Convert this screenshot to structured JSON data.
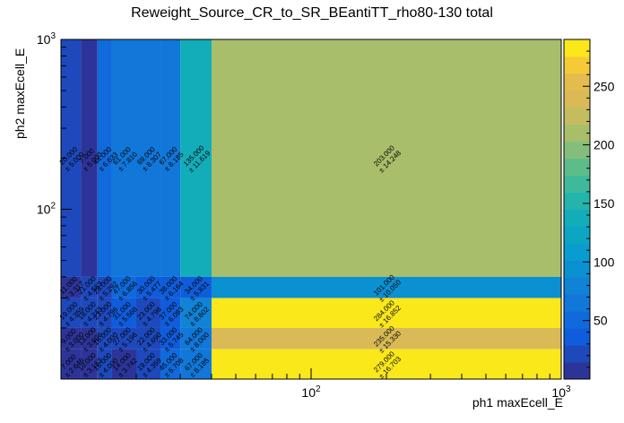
{
  "chart_data": {
    "type": "heatmap",
    "title": "Reweight_Source_CR_to_SR_BEantiTT_rho80-130 total",
    "xlabel": "ph1 maxEcell_E",
    "ylabel": "ph2 maxEcell_E",
    "x_scale": "log",
    "y_scale": "log",
    "xlim": [
      10,
      1000
    ],
    "ylim": [
      10,
      1000
    ],
    "x_tick_labels": [
      "10^2",
      "10^3"
    ],
    "y_tick_labels": [
      "10^2",
      "10^3"
    ],
    "x_edges": [
      10,
      12,
      14,
      16,
      20,
      25,
      30,
      40,
      1000
    ],
    "y_edges": [
      10,
      15,
      20,
      30,
      40,
      1000
    ],
    "z_range": [
      0,
      290
    ],
    "z_ticks": [
      50,
      100,
      150,
      200,
      250
    ],
    "cells": [
      {
        "x": 0,
        "y": 4,
        "value": 20.0,
        "error": 5.0
      },
      {
        "x": 1,
        "y": 4,
        "value": 7.0,
        "error": 5.0
      },
      {
        "x": 2,
        "y": 4,
        "value": 44.0,
        "error": 6.633
      },
      {
        "x": 3,
        "y": 4,
        "value": 61.0,
        "error": 7.81
      },
      {
        "x": 4,
        "y": 4,
        "value": 69.0,
        "error": 8.307
      },
      {
        "x": 5,
        "y": 4,
        "value": 67.0,
        "error": 8.185
      },
      {
        "x": 6,
        "y": 4,
        "value": 135.0,
        "error": 11.619
      },
      {
        "x": 7,
        "y": 4,
        "value": 203.0,
        "error": 14.248
      },
      {
        "x": 0,
        "y": 3,
        "value": 11.0,
        "error": 3.317
      },
      {
        "x": 1,
        "y": 3,
        "value": 21.0,
        "error": 4.583
      },
      {
        "x": 2,
        "y": 3,
        "value": 28.0,
        "error": 5.292
      },
      {
        "x": 3,
        "y": 3,
        "value": 47.0,
        "error": 6.856
      },
      {
        "x": 4,
        "y": 3,
        "value": 30.0,
        "error": 5.477
      },
      {
        "x": 5,
        "y": 3,
        "value": 38.0,
        "error": 6.164
      },
      {
        "x": 6,
        "y": 3,
        "value": 34.0,
        "error": 5.831
      },
      {
        "x": 7,
        "y": 3,
        "value": 101.0,
        "error": 10.05
      },
      {
        "x": 0,
        "y": 2,
        "value": 19.0,
        "error": 4.359
      },
      {
        "x": 1,
        "y": 2,
        "value": 18.0,
        "error": 4.243
      },
      {
        "x": 2,
        "y": 2,
        "value": 23.0,
        "error": 4.796
      },
      {
        "x": 3,
        "y": 2,
        "value": 31.0,
        "error": 5.568
      },
      {
        "x": 4,
        "y": 2,
        "value": 23.0,
        "error": 4.796
      },
      {
        "x": 5,
        "y": 2,
        "value": 37.0,
        "error": 6.083
      },
      {
        "x": 6,
        "y": 2,
        "value": 74.0,
        "error": 8.602
      },
      {
        "x": 7,
        "y": 2,
        "value": 284.0,
        "error": 16.852
      },
      {
        "x": 0,
        "y": 1,
        "value": 9.0,
        "error": 3.0
      },
      {
        "x": 1,
        "y": 1,
        "value": 13.0,
        "error": 3.606
      },
      {
        "x": 2,
        "y": 1,
        "value": 16.0,
        "error": 4.0
      },
      {
        "x": 3,
        "y": 1,
        "value": 27.0,
        "error": 5.196
      },
      {
        "x": 4,
        "y": 1,
        "value": 22.0,
        "error": 4.69
      },
      {
        "x": 5,
        "y": 1,
        "value": 33.0,
        "error": 5.745
      },
      {
        "x": 6,
        "y": 1,
        "value": 64.0,
        "error": 8.0
      },
      {
        "x": 7,
        "y": 1,
        "value": 235.0,
        "error": 15.33
      },
      {
        "x": 0,
        "y": 0,
        "value": 7.0,
        "error": 2.646
      },
      {
        "x": 1,
        "y": 0,
        "value": 10.0,
        "error": 3.162
      },
      {
        "x": 2,
        "y": 0,
        "value": 16.0,
        "error": 4.0
      },
      {
        "x": 3,
        "y": 0,
        "value": 14.0,
        "error": 3.742
      },
      {
        "x": 4,
        "y": 0,
        "value": 19.0,
        "error": 4.359
      },
      {
        "x": 5,
        "y": 0,
        "value": 45.0,
        "error": 6.708
      },
      {
        "x": 6,
        "y": 0,
        "value": 67.0,
        "error": 8.185
      },
      {
        "x": 7,
        "y": 0,
        "value": 279.0,
        "error": 16.703
      }
    ],
    "grid": false,
    "legend": "none",
    "colorbar": "right"
  }
}
